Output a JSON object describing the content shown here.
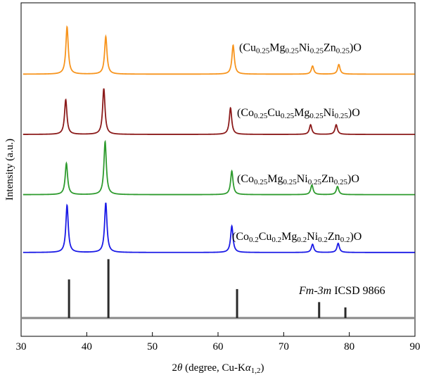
{
  "chart_data": {
    "type": "line",
    "title": "",
    "xlabel": {
      "segments": [
        {
          "text": "2",
          "style": "normal"
        },
        {
          "text": "θ",
          "style": "italic"
        },
        {
          "text": " (degree, Cu-K",
          "style": "normal"
        },
        {
          "text": "α",
          "style": "italic"
        },
        {
          "text": "1,2",
          "style": "sub"
        },
        {
          "text": ")",
          "style": "normal"
        }
      ]
    },
    "ylabel": "Intensity (a.u.)",
    "xlim": [
      30,
      90
    ],
    "xticks": [
      30,
      40,
      50,
      60,
      70,
      80,
      90
    ],
    "yticks_shown": false,
    "grid": false,
    "peak_width_deg": 0.22,
    "series": [
      {
        "name": "(Cu0.25Mg0.25Ni0.25Zn0.25)O",
        "label_segments": [
          {
            "text": "(Cu",
            "style": "normal"
          },
          {
            "text": "0.25",
            "style": "sub"
          },
          {
            "text": "Mg",
            "style": "normal"
          },
          {
            "text": "0.25",
            "style": "sub"
          },
          {
            "text": "Ni",
            "style": "normal"
          },
          {
            "text": "0.25",
            "style": "sub"
          },
          {
            "text": "Zn",
            "style": "normal"
          },
          {
            "text": "0.25",
            "style": "sub"
          },
          {
            "text": ")O",
            "style": "normal"
          }
        ],
        "color": "#f7941d",
        "baseline": 5.0,
        "peaks": [
          [
            37.0,
            0.98
          ],
          [
            42.9,
            0.78
          ],
          [
            62.3,
            0.6
          ],
          [
            74.4,
            0.17
          ],
          [
            78.4,
            0.2
          ]
        ]
      },
      {
        "name": "(Co0.25Cu0.25Mg0.25Ni0.25)O",
        "label_segments": [
          {
            "text": "(Co",
            "style": "normal"
          },
          {
            "text": "0.25",
            "style": "sub"
          },
          {
            "text": "Cu",
            "style": "normal"
          },
          {
            "text": "0.25",
            "style": "sub"
          },
          {
            "text": "Mg",
            "style": "normal"
          },
          {
            "text": "0.25",
            "style": "sub"
          },
          {
            "text": "Ni",
            "style": "normal"
          },
          {
            "text": "0.25",
            "style": "sub"
          },
          {
            "text": ")O",
            "style": "normal"
          }
        ],
        "color": "#8b1a1a",
        "baseline": 3.75,
        "peaks": [
          [
            36.8,
            0.72
          ],
          [
            42.6,
            0.95
          ],
          [
            61.9,
            0.55
          ],
          [
            74.1,
            0.2
          ],
          [
            78.0,
            0.2
          ]
        ]
      },
      {
        "name": "(Co0.25Mg0.25Ni0.25Zn0.25)O",
        "label_segments": [
          {
            "text": "(Co",
            "style": "normal"
          },
          {
            "text": "0.25",
            "style": "sub"
          },
          {
            "text": "Mg",
            "style": "normal"
          },
          {
            "text": "0.25",
            "style": "sub"
          },
          {
            "text": "Ni",
            "style": "normal"
          },
          {
            "text": "0.25",
            "style": "sub"
          },
          {
            "text": "Zn",
            "style": "normal"
          },
          {
            "text": "0.25",
            "style": "sub"
          },
          {
            "text": ")O",
            "style": "normal"
          }
        ],
        "color": "#2e9b2e",
        "baseline": 2.5,
        "peaks": [
          [
            36.9,
            0.65
          ],
          [
            42.8,
            1.1
          ],
          [
            62.1,
            0.49
          ],
          [
            74.3,
            0.2
          ],
          [
            78.2,
            0.17
          ]
        ]
      },
      {
        "name": "(Co0.2Cu0.2Mg0.2Ni0.2Zn0.2)O",
        "label_segments": [
          {
            "text": "(Co",
            "style": "normal"
          },
          {
            "text": "0.2",
            "style": "sub"
          },
          {
            "text": "Cu",
            "style": "normal"
          },
          {
            "text": "0.2",
            "style": "sub"
          },
          {
            "text": "Mg",
            "style": "normal"
          },
          {
            "text": "0.2",
            "style": "sub"
          },
          {
            "text": "Ni",
            "style": "normal"
          },
          {
            "text": "0.2",
            "style": "sub"
          },
          {
            "text": "Zn",
            "style": "normal"
          },
          {
            "text": "0.2",
            "style": "sub"
          },
          {
            "text": ")O",
            "style": "normal"
          }
        ],
        "color": "#1a1ae6",
        "baseline": 1.3,
        "peaks": [
          [
            37.0,
            0.98
          ],
          [
            42.9,
            1.03
          ],
          [
            62.1,
            0.55
          ],
          [
            74.4,
            0.17
          ],
          [
            78.3,
            0.19
          ]
        ]
      }
    ],
    "reference": {
      "name": "Fm-3m ICSD 9866",
      "label_segments": [
        {
          "text": "Fm-3m",
          "style": "italic"
        },
        {
          "text": " ICSD 9866",
          "style": "normal"
        }
      ],
      "color": "#2a2a2a",
      "baseline_color": "#888888",
      "baseline": 0.0,
      "sticks": [
        [
          37.3,
          0.8
        ],
        [
          43.3,
          1.22
        ],
        [
          62.9,
          0.6
        ],
        [
          75.4,
          0.33
        ],
        [
          79.4,
          0.22
        ]
      ]
    }
  }
}
